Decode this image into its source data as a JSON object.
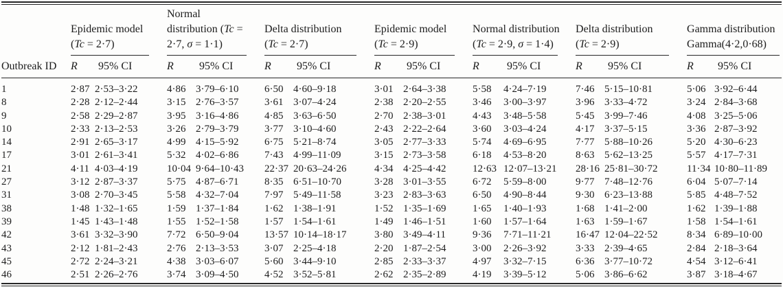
{
  "table": {
    "row_header_label": "Outbreak ID",
    "col_r_label": "R",
    "col_ci_label": "95% CI",
    "groups": [
      {
        "title": "Epidemic model (Tc = 2·7)",
        "lines": [
          "Epidemic model",
          "(Tc = 2·7)"
        ]
      },
      {
        "title": "Normal distribution (Tc = 2·7, σ = 1·1)",
        "lines": [
          "Normal",
          "distribution (Tc =",
          "2·7, σ = 1·1)"
        ]
      },
      {
        "title": "Delta distribution (Tc = 2·7)",
        "lines": [
          "Delta distribution",
          "(Tc = 2·7)"
        ]
      },
      {
        "title": "Epidemic model (Tc = 2·9)",
        "lines": [
          "Epidemic model",
          "(Tc = 2·9)"
        ]
      },
      {
        "title": "Normal distribution (Tc = 2·9, σ = 1·4)",
        "lines": [
          "Normal distribution",
          "(Tc = 2·9, σ = 1·4)"
        ]
      },
      {
        "title": "Delta distribution (Tc = 2·9)",
        "lines": [
          "Delta distribution",
          "(Tc = 2·9)"
        ]
      },
      {
        "title": "Gamma distribution Gamma(4·2,0·68)",
        "lines": [
          "Gamma distribution",
          "Gamma(4·2,0·68)"
        ]
      }
    ],
    "rows": [
      {
        "id": "1",
        "cells": [
          [
            "2·87",
            "2·53–3·22"
          ],
          [
            "4·86",
            "3·79–6·10"
          ],
          [
            "6·50",
            "4·60–9·18"
          ],
          [
            "3·01",
            "2·64–3·38"
          ],
          [
            "5·58",
            "4·24–7·19"
          ],
          [
            "7·46",
            "5·15–10·81"
          ],
          [
            "5·06",
            "3·92–6·44"
          ]
        ]
      },
      {
        "id": "8",
        "cells": [
          [
            "2·28",
            "2·12–2·44"
          ],
          [
            "3·15",
            "2·76–3·57"
          ],
          [
            "3·61",
            "3·07–4·24"
          ],
          [
            "2·38",
            "2·20–2·55"
          ],
          [
            "3·46",
            "3·00–3·97"
          ],
          [
            "3·96",
            "3·33–4·72"
          ],
          [
            "3·24",
            "2·84–3·68"
          ]
        ]
      },
      {
        "id": "9",
        "cells": [
          [
            "2·58",
            "2·29–2·87"
          ],
          [
            "3·95",
            "3·16–4·86"
          ],
          [
            "4·85",
            "3·63–6·50"
          ],
          [
            "2·70",
            "2·38–3·01"
          ],
          [
            "4·43",
            "3·48–5·58"
          ],
          [
            "5·45",
            "3·99–7·46"
          ],
          [
            "4·08",
            "3·25–5·06"
          ]
        ]
      },
      {
        "id": "10",
        "cells": [
          [
            "2·33",
            "2·13–2·53"
          ],
          [
            "3·26",
            "2·79–3·79"
          ],
          [
            "3·77",
            "3·10–4·60"
          ],
          [
            "2·43",
            "2·22–2·64"
          ],
          [
            "3·60",
            "3·03–4·24"
          ],
          [
            "4·17",
            "3·37–5·15"
          ],
          [
            "3·36",
            "2·87–3·92"
          ]
        ]
      },
      {
        "id": "14",
        "cells": [
          [
            "2·91",
            "2·65–3·17"
          ],
          [
            "4·99",
            "4·15–5·92"
          ],
          [
            "6·75",
            "5·21–8·74"
          ],
          [
            "3·05",
            "2·77–3·33"
          ],
          [
            "5·74",
            "4·69–6·95"
          ],
          [
            "7·77",
            "5·88–10·26"
          ],
          [
            "5·20",
            "4·30–6·23"
          ]
        ]
      },
      {
        "id": "17",
        "cells": [
          [
            "3·01",
            "2·61–3·41"
          ],
          [
            "5·32",
            "4·02–6·86"
          ],
          [
            "7·43",
            "4·99–11·09"
          ],
          [
            "3·15",
            "2·73–3·58"
          ],
          [
            "6·18",
            "4·53–8·20"
          ],
          [
            "8·63",
            "5·62–13·25"
          ],
          [
            "5·57",
            "4·17–7·31"
          ]
        ]
      },
      {
        "id": "21",
        "cells": [
          [
            "4·11",
            "4·03–4·19"
          ],
          [
            "10·04",
            "9·64–10·43"
          ],
          [
            "22·37",
            "20·63–24·26"
          ],
          [
            "4·34",
            "4·25–4·42"
          ],
          [
            "12·63",
            "12·07–13·21"
          ],
          [
            "28·16",
            "25·81–30·72"
          ],
          [
            "11·34",
            "10·80–11·89"
          ]
        ]
      },
      {
        "id": "27",
        "cells": [
          [
            "3·12",
            "2·87–3·37"
          ],
          [
            "5·75",
            "4·87–6·71"
          ],
          [
            "8·35",
            "6·51–10·70"
          ],
          [
            "3·28",
            "3·01–3·55"
          ],
          [
            "6·72",
            "5·59–8·00"
          ],
          [
            "9·77",
            "7·48–12·76"
          ],
          [
            "6·04",
            "5·07–7·14"
          ]
        ]
      },
      {
        "id": "31",
        "cells": [
          [
            "3·08",
            "2·70–3·45"
          ],
          [
            "5·58",
            "4·32–7·04"
          ],
          [
            "7·97",
            "5·49–11·58"
          ],
          [
            "3·23",
            "2·83–3·63"
          ],
          [
            "6·50",
            "4·90–8·44"
          ],
          [
            "9·30",
            "6·23–13·88"
          ],
          [
            "5·85",
            "4·48–7·52"
          ]
        ]
      },
      {
        "id": "38",
        "cells": [
          [
            "1·48",
            "1·32–1·65"
          ],
          [
            "1·59",
            "1·37–1·84"
          ],
          [
            "1·62",
            "1·38–1·91"
          ],
          [
            "1·52",
            "1·35–1·69"
          ],
          [
            "1·65",
            "1·40–1·93"
          ],
          [
            "1·68",
            "1·41–2·00"
          ],
          [
            "1·62",
            "1·39–1·88"
          ]
        ]
      },
      {
        "id": "39",
        "cells": [
          [
            "1·45",
            "1·43–1·48"
          ],
          [
            "1·55",
            "1·52–1·58"
          ],
          [
            "1·57",
            "1·54–1·61"
          ],
          [
            "1·49",
            "1·46–1·51"
          ],
          [
            "1·60",
            "1·57–1·64"
          ],
          [
            "1·63",
            "1·59–1·67"
          ],
          [
            "1·58",
            "1·54–1·61"
          ]
        ]
      },
      {
        "id": "42",
        "cells": [
          [
            "3·61",
            "3·32–3·90"
          ],
          [
            "7·72",
            "6·50–9·04"
          ],
          [
            "13·57",
            "10·14–18·17"
          ],
          [
            "3·80",
            "3·49–4·11"
          ],
          [
            "9·36",
            "7·71–11·21"
          ],
          [
            "16·47",
            "12·04–22·52"
          ],
          [
            "8·34",
            "6·89–10·00"
          ]
        ]
      },
      {
        "id": "43",
        "cells": [
          [
            "2·12",
            "1·81–2·43"
          ],
          [
            "2·76",
            "2·13–3·53"
          ],
          [
            "3·07",
            "2·25–4·18"
          ],
          [
            "2·20",
            "1·87–2·54"
          ],
          [
            "3·00",
            "2·26–3·92"
          ],
          [
            "3·33",
            "2·39–4·65"
          ],
          [
            "2·84",
            "2·18–3·64"
          ]
        ]
      },
      {
        "id": "45",
        "cells": [
          [
            "2·72",
            "2·24–3·21"
          ],
          [
            "4·38",
            "3·03–6·07"
          ],
          [
            "5·60",
            "3·44–9·10"
          ],
          [
            "2·85",
            "2·33–3·37"
          ],
          [
            "4·97",
            "3·32–7·15"
          ],
          [
            "6·36",
            "3·77–10·72"
          ],
          [
            "4·54",
            "3·12–6·41"
          ]
        ]
      },
      {
        "id": "46",
        "cells": [
          [
            "2·51",
            "2·26–2·76"
          ],
          [
            "3·74",
            "3·09–4·50"
          ],
          [
            "4·52",
            "3·52–5·81"
          ],
          [
            "2·62",
            "2·35–2·89"
          ],
          [
            "4·19",
            "3·39–5·12"
          ],
          [
            "5·06",
            "3·86–6·62"
          ],
          [
            "3·87",
            "3·18–4·67"
          ]
        ]
      }
    ]
  }
}
